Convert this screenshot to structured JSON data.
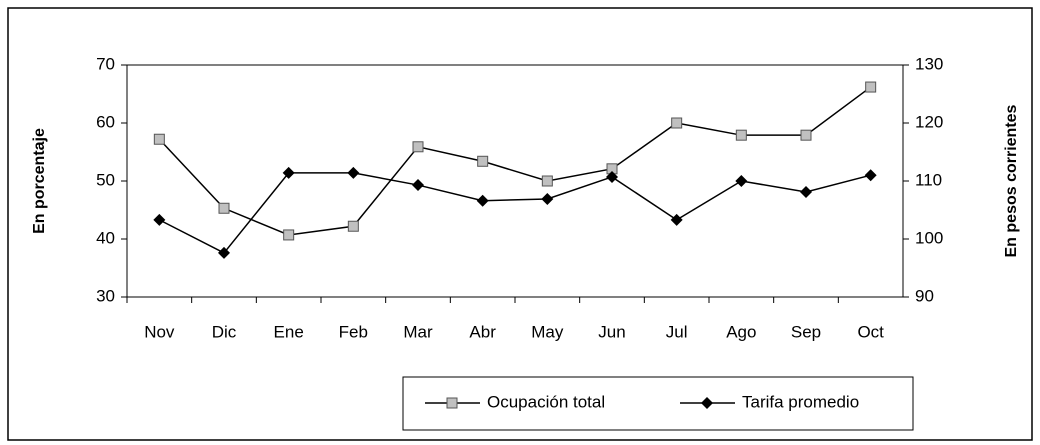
{
  "chart_data": {
    "type": "line",
    "y_label": "En porcentaje",
    "y2_label": "En pesos corrientes",
    "categories": [
      "Nov",
      "Dic",
      "Ene",
      "Feb",
      "Mar",
      "Abr",
      "May",
      "Jun",
      "Jul",
      "Ago",
      "Sep",
      "Oct"
    ],
    "series": [
      {
        "name": "Ocupación total",
        "color": "#000000",
        "marker": "square",
        "marker_color": "#c0c0c0",
        "values": [
          57.2,
          45.3,
          40.7,
          42.2,
          55.9,
          53.4,
          50,
          52.1,
          60,
          57.9,
          57.9,
          66.2
        ]
      },
      {
        "name": "Tarifa promedio",
        "color": "#000000",
        "marker": "diamond",
        "marker_color": "#000000",
        "axis": "y2",
        "values": [
          103.3,
          97.6,
          111.4,
          111.4,
          109.3,
          106.6,
          106.9,
          110.7,
          103.3,
          110,
          108.1,
          111
        ]
      }
    ],
    "ylim": [
      30,
      70
    ],
    "yticks": [
      30,
      40,
      50,
      60,
      70
    ],
    "y2lim": [
      90,
      130
    ],
    "y2ticks": [
      90,
      100,
      110,
      120,
      130
    ],
    "grid": false,
    "legend": "bottom"
  }
}
